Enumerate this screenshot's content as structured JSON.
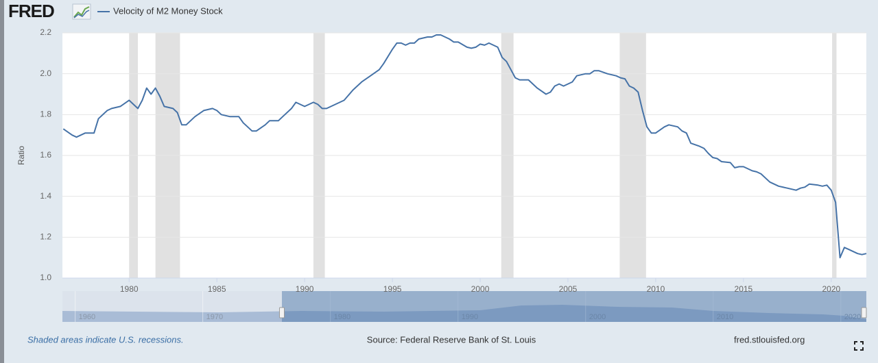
{
  "chart_data": {
    "type": "line",
    "logo": "FRED",
    "series": [
      {
        "name": "Velocity of M2 Money Stock",
        "color": "#4572a7",
        "x": [
          1976.25,
          1976.75,
          1977.0,
          1977.5,
          1978.0,
          1978.25,
          1978.75,
          1979.0,
          1979.5,
          1980.0,
          1980.5,
          1980.75,
          1981.0,
          1981.25,
          1981.5,
          1981.75,
          1982.0,
          1982.5,
          1982.75,
          1983.0,
          1983.25,
          1983.75,
          1984.25,
          1984.75,
          1985.0,
          1985.25,
          1985.75,
          1986.25,
          1986.5,
          1987.0,
          1987.25,
          1987.75,
          1988.0,
          1988.25,
          1988.5,
          1988.75,
          1989.25,
          1989.5,
          1989.75,
          1990.0,
          1990.5,
          1990.75,
          1991.0,
          1991.25,
          1991.75,
          1992.25,
          1992.75,
          1993.25,
          1993.75,
          1994.25,
          1994.5,
          1995.0,
          1995.25,
          1995.5,
          1995.75,
          1996.0,
          1996.25,
          1996.5,
          1997.0,
          1997.25,
          1997.5,
          1997.75,
          1998.25,
          1998.5,
          1998.75,
          1999.25,
          1999.5,
          1999.75,
          2000.0,
          2000.25,
          2000.5,
          2000.75,
          2001.0,
          2001.25,
          2001.5,
          2001.75,
          2002.0,
          2002.25,
          2002.75,
          2003.0,
          2003.25,
          2003.75,
          2004.0,
          2004.25,
          2004.5,
          2004.75,
          2005.25,
          2005.5,
          2006.0,
          2006.25,
          2006.5,
          2006.75,
          2007.25,
          2007.75,
          2008.0,
          2008.25,
          2008.5,
          2008.75,
          2009.0,
          2009.25,
          2009.5,
          2009.75,
          2010.0,
          2010.5,
          2010.75,
          2011.25,
          2011.5,
          2011.75,
          2012.0,
          2012.5,
          2012.75,
          2013.0,
          2013.25,
          2013.5,
          2013.75,
          2014.25,
          2014.5,
          2014.75,
          2015.0,
          2015.5,
          2015.75,
          2016.0,
          2016.5,
          2016.75,
          2017.0,
          2017.5,
          2017.75,
          2018.0,
          2018.25,
          2018.5,
          2018.75,
          2019.25,
          2019.5,
          2019.75,
          2020.0,
          2020.25,
          2020.5,
          2020.75,
          2021.0,
          2021.25,
          2021.5,
          2021.75,
          2022.0
        ],
        "values": [
          1.73,
          1.7,
          1.69,
          1.71,
          1.71,
          1.78,
          1.82,
          1.83,
          1.84,
          1.87,
          1.83,
          1.87,
          1.93,
          1.9,
          1.93,
          1.89,
          1.84,
          1.83,
          1.81,
          1.75,
          1.75,
          1.79,
          1.82,
          1.83,
          1.82,
          1.8,
          1.79,
          1.79,
          1.76,
          1.72,
          1.72,
          1.75,
          1.77,
          1.77,
          1.77,
          1.79,
          1.83,
          1.86,
          1.85,
          1.84,
          1.86,
          1.85,
          1.83,
          1.83,
          1.85,
          1.87,
          1.92,
          1.96,
          1.99,
          2.02,
          2.05,
          2.12,
          2.15,
          2.15,
          2.14,
          2.15,
          2.15,
          2.17,
          2.18,
          2.18,
          2.19,
          2.19,
          2.17,
          2.155,
          2.155,
          2.13,
          2.125,
          2.13,
          2.145,
          2.14,
          2.15,
          2.14,
          2.13,
          2.08,
          2.06,
          2.02,
          1.98,
          1.97,
          1.97,
          1.95,
          1.93,
          1.9,
          1.91,
          1.94,
          1.95,
          1.94,
          1.96,
          1.99,
          2.0,
          2.0,
          2.015,
          2.015,
          2.0,
          1.99,
          1.98,
          1.975,
          1.94,
          1.93,
          1.91,
          1.82,
          1.74,
          1.71,
          1.71,
          1.74,
          1.75,
          1.74,
          1.72,
          1.71,
          1.66,
          1.645,
          1.635,
          1.61,
          1.59,
          1.585,
          1.57,
          1.565,
          1.54,
          1.545,
          1.545,
          1.525,
          1.52,
          1.51,
          1.47,
          1.46,
          1.45,
          1.44,
          1.435,
          1.43,
          1.44,
          1.445,
          1.46,
          1.455,
          1.45,
          1.455,
          1.43,
          1.37,
          1.1,
          1.15,
          1.14,
          1.13,
          1.12,
          1.115,
          1.12
        ]
      }
    ],
    "recessions": [
      [
        1980.0,
        1980.5
      ],
      [
        1981.5,
        1982.9
      ],
      [
        1990.5,
        1991.15
      ],
      [
        2001.2,
        2001.9
      ],
      [
        2007.95,
        2009.45
      ],
      [
        2020.05,
        2020.3
      ]
    ],
    "recession_color": "#e1e1e1",
    "xlim": [
      1976.2,
      2022.0
    ],
    "xticks": [
      1980,
      1985,
      1990,
      1995,
      2000,
      2005,
      2010,
      2015,
      2020
    ],
    "ylim": [
      1.0,
      2.2
    ],
    "yticks": [
      {
        "value": 1.0,
        "label": "1.0"
      },
      1.2,
      1.4,
      1.6,
      1.8,
      {
        "value": 2.0,
        "label": "2.0"
      },
      2.2
    ],
    "ylabel": "Ratio",
    "grid": true,
    "navigator": {
      "xlim": [
        1959.0,
        2022.0
      ],
      "xticks": [
        1960,
        1970,
        1980,
        1990,
        2000,
        2010,
        2020
      ]
    },
    "notes": [
      "Shaded areas indicate U.S. recessions.",
      "Source: Federal Reserve Bank of St. Louis",
      "fred.stlouisfed.org"
    ]
  }
}
